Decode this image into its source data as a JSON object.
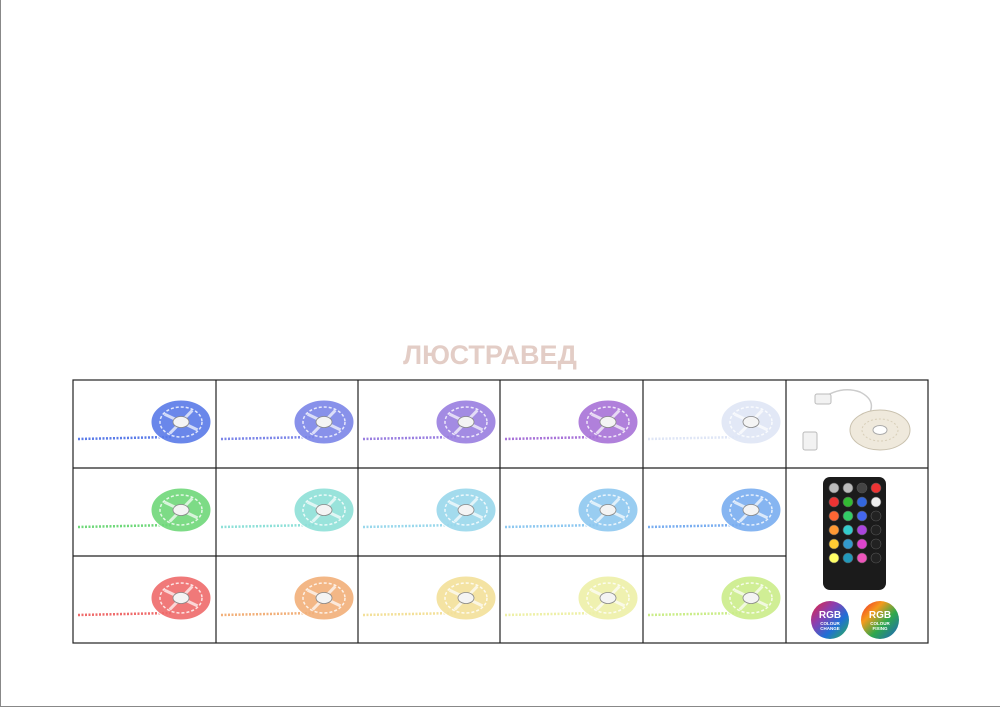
{
  "watermark": "ЛЮСТРАВЕД",
  "badges": [
    {
      "label": "RGB",
      "caption": [
        "COLOUR",
        "CHANGE"
      ]
    },
    {
      "label": "RGB",
      "caption": [
        "COLOUR",
        "FIXING"
      ]
    }
  ]
}
